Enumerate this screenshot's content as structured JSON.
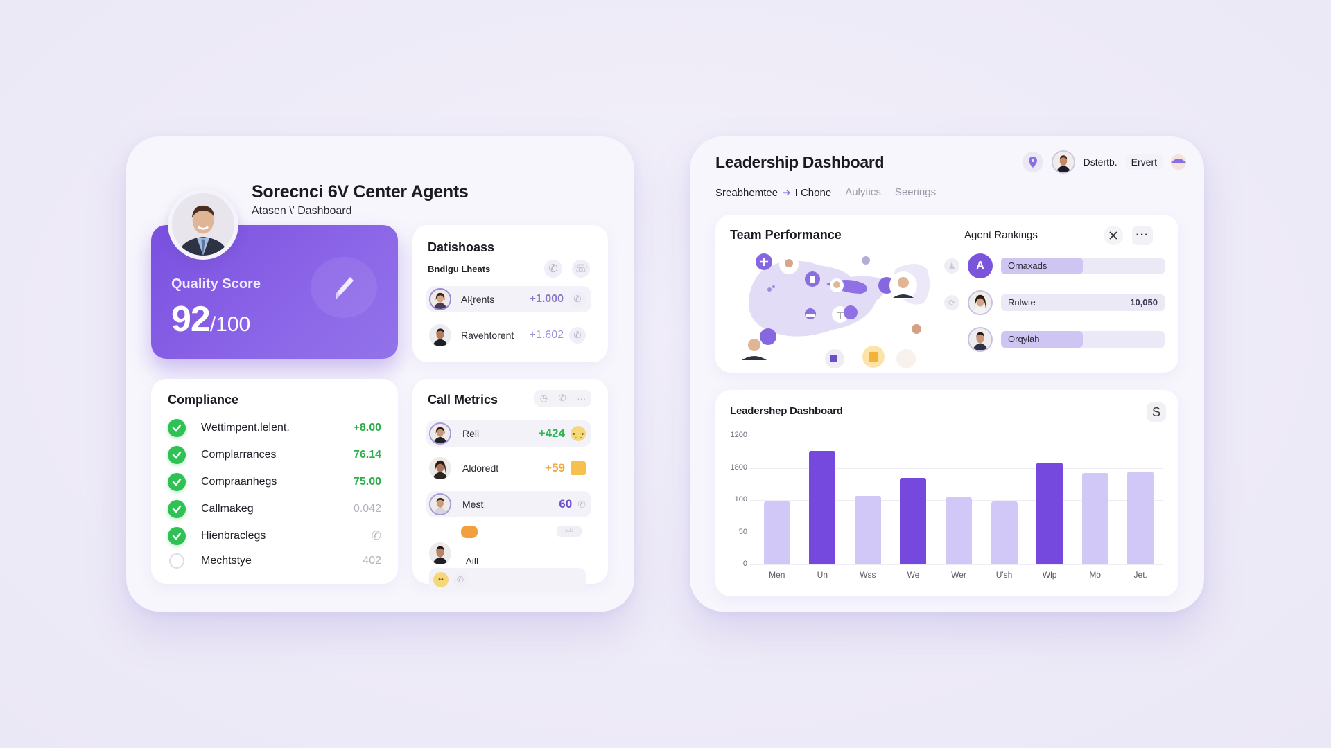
{
  "colors": {
    "accent": "#7a50e0",
    "accent_light": "#cfc5f3",
    "success": "#2ec254",
    "warning": "#f2a93b",
    "background": "#eeebf8",
    "panel": "#f7f6fc"
  },
  "left_panel": {
    "title": "Sorecnci 6V Center Agents",
    "subtitle": "Atasen \\' Dashboard",
    "avatar_icon": "person-avatar",
    "quality_card": {
      "label": "Quality Score",
      "value": "92",
      "denominator": "/100",
      "icon": "pencil-icon"
    },
    "datis_card": {
      "title": "Datishoass",
      "subtitle": "Bndlgu Lheats",
      "header_icons": [
        "phone-icon",
        "phone-off-icon"
      ],
      "rows": [
        {
          "name": "Al{rents",
          "value": "+1.000",
          "icon": "phone-icon"
        },
        {
          "name": "Ravehtorent",
          "value": "+1.602",
          "icon": "phone-icon"
        }
      ]
    },
    "compliance_card": {
      "title": "Compliance",
      "rows": [
        {
          "name": "Wettimpent.lelent.",
          "value": "+8.00",
          "checked": true,
          "style": "green"
        },
        {
          "name": "Complarrances",
          "value": "76.14",
          "checked": true,
          "style": "green"
        },
        {
          "name": "Compraanhegs",
          "value": "75.00",
          "checked": true,
          "style": "green"
        },
        {
          "name": "Callmakeg",
          "value": "0.042",
          "checked": true,
          "style": "muted"
        },
        {
          "name": "Hienbraclegs",
          "value": "",
          "checked": true,
          "style": "phone-icon"
        },
        {
          "name": "Mechtstye",
          "value": "402",
          "checked": false,
          "style": "muted"
        }
      ]
    },
    "call_metrics_card": {
      "title": "Call Metrics",
      "header_icons": [
        "timer-icon",
        "phone-icon",
        "more-icon"
      ],
      "header_more": "···",
      "rows": [
        {
          "name": "Reli",
          "value": "+424",
          "value_color": "#2fb552",
          "trail": "smile-emoji-icon"
        },
        {
          "name": "Aldoredt",
          "value": "+59",
          "value_color": "#f2a93b",
          "trail": "badge-icon"
        },
        {
          "name": "Mest",
          "value": "60",
          "value_color": "#6b4fc8",
          "trail": "phone-icon"
        },
        {
          "name": "Aill",
          "value": "",
          "value_color": "#6b4fc8",
          "trail": "emoji-phone-icons"
        }
      ],
      "mini_tag": "ᵖᵁᵁ"
    }
  },
  "right_panel": {
    "title": "Leadership Dashboard",
    "nav": {
      "breadcrumb_parent": "Sreabhemtee",
      "breadcrumb_arrow": "➔",
      "breadcrumb_current": "I Chone",
      "tabs": [
        "Aulytics",
        "Seerings"
      ]
    },
    "header_right": {
      "location_icon": "pin-icon",
      "user_label": "Dstertb.",
      "button_label": "Ervert",
      "profile_icon": "user-avatar"
    },
    "team_performance": {
      "title": "Team Performance",
      "map_icon": "team-map-illustration"
    },
    "agent_rankings": {
      "title": "Agent Rankings",
      "close_icon": "close-icon",
      "more_label": "···",
      "rows": [
        {
          "label": "Ornaxads",
          "value": "",
          "fill_pct": 50,
          "avatar": "A",
          "side_icon": "person-icon"
        },
        {
          "label": "Rnlwte",
          "value": "10,050",
          "fill_pct": 0,
          "avatar": "woman",
          "side_icon": "sync-icon"
        },
        {
          "label": "Orqylah",
          "value": "",
          "fill_pct": 50,
          "avatar": "man",
          "side_icon": ""
        }
      ]
    },
    "chart_card": {
      "title": "Leadershep Dashboard",
      "button_label": "S"
    }
  },
  "chart_data": {
    "type": "bar",
    "title": "Leadershep Dashboard",
    "xlabel": "",
    "ylabel": "",
    "categories": [
      "Men",
      "Un",
      "Wss",
      "We",
      "Wer",
      "U'sh",
      "Wlp",
      "Mo",
      "Jet."
    ],
    "y_tick_labels": [
      "1200",
      "1800",
      "100",
      "50",
      "0"
    ],
    "y_tick_positions_pct": [
      100,
      75,
      50,
      25,
      0
    ],
    "values_pct_of_axis": [
      49,
      88,
      53,
      67,
      52,
      49,
      79,
      71,
      72
    ],
    "highlighted": [
      false,
      true,
      false,
      true,
      false,
      false,
      true,
      false,
      false
    ],
    "series_colors": {
      "highlight": "#7549dd",
      "normal": "#d2c8f7"
    },
    "grid": true,
    "legend": "none"
  }
}
